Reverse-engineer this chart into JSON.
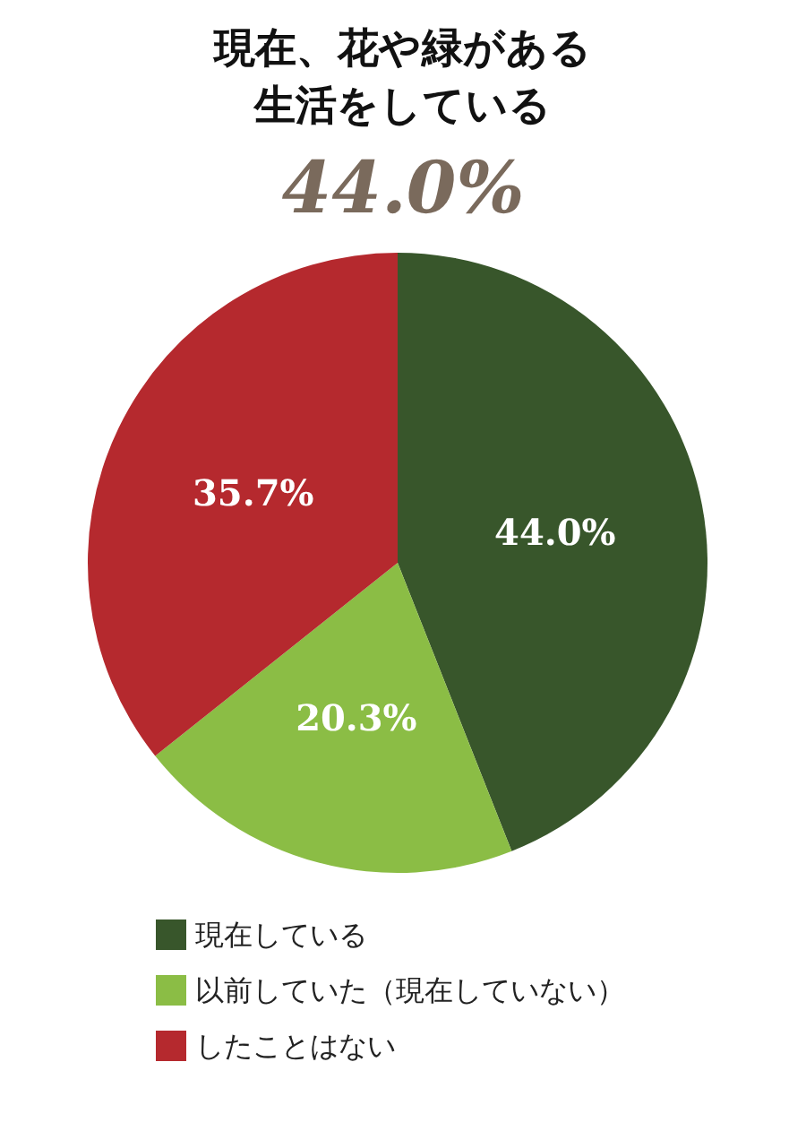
{
  "chart_data": {
    "type": "pie",
    "title": "現在、花や緑がある生活をしている",
    "subtitle": "44.0%",
    "categories": [
      "現在している",
      "以前していた（現在していない）",
      "したことはない"
    ],
    "values": [
      44.0,
      20.3,
      35.7
    ],
    "colors": [
      "#38562b",
      "#8bbd45",
      "#b5292e"
    ],
    "value_labels": [
      "44.0%",
      "20.3%",
      "35.7%"
    ],
    "legend": "bottom"
  }
}
